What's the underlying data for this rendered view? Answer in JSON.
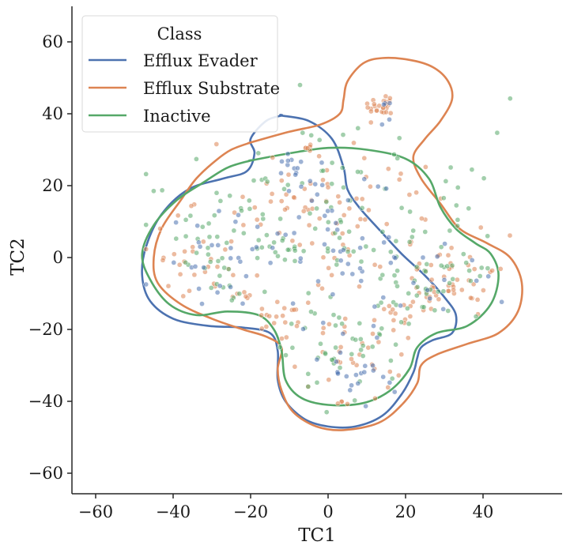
{
  "chart_data": {
    "type": "scatter",
    "xlabel": "TC1",
    "ylabel": "TC2",
    "xlim": [
      -65,
      60
    ],
    "ylim": [
      -66,
      70
    ],
    "x_ticks": [
      -60,
      -40,
      -20,
      0,
      20,
      40
    ],
    "y_ticks": [
      -60,
      -40,
      -20,
      0,
      20,
      40,
      60
    ],
    "x_tick_labels": [
      "−60",
      "−40",
      "−20",
      "0",
      "20",
      "40"
    ],
    "y_tick_labels": [
      "−60",
      "−40",
      "−20",
      "0",
      "20",
      "40",
      "60"
    ],
    "grid": false,
    "legend": {
      "title": "Class",
      "placement": "top-left",
      "entries": [
        {
          "label": "Efflux Evader",
          "color": "#4c72b0"
        },
        {
          "label": "Efflux Substrate",
          "color": "#dd8452"
        },
        {
          "label": "Inactive",
          "color": "#55a868"
        }
      ]
    },
    "series": [
      {
        "name": "Efflux Evader",
        "color": "#4c72b0",
        "contour": [
          [
            -12,
            39.5
          ],
          [
            -5,
            38
          ],
          [
            1,
            33
          ],
          [
            4,
            25
          ],
          [
            5,
            19
          ],
          [
            8,
            14
          ],
          [
            13,
            8
          ],
          [
            19,
            1
          ],
          [
            25,
            -5
          ],
          [
            30,
            -11
          ],
          [
            33,
            -16
          ],
          [
            32,
            -21
          ],
          [
            27,
            -23
          ],
          [
            24,
            -25
          ],
          [
            23,
            -28
          ],
          [
            22,
            -32
          ],
          [
            19,
            -38
          ],
          [
            14,
            -44
          ],
          [
            7,
            -47
          ],
          [
            0,
            -47
          ],
          [
            -6,
            -45
          ],
          [
            -11,
            -40
          ],
          [
            -13,
            -34
          ],
          [
            -13,
            -26
          ],
          [
            -15,
            -21
          ],
          [
            -22,
            -19.5
          ],
          [
            -31,
            -19
          ],
          [
            -40,
            -17
          ],
          [
            -46,
            -12
          ],
          [
            -48,
            -5
          ],
          [
            -47,
            3
          ],
          [
            -43,
            12
          ],
          [
            -36,
            19
          ],
          [
            -27,
            22
          ],
          [
            -21,
            24
          ],
          [
            -19,
            29
          ],
          [
            -20,
            33
          ],
          [
            -16,
            38
          ],
          [
            -12,
            39.5
          ]
        ],
        "clusters": [
          {
            "cx": -10,
            "cy": 25,
            "sx": 2,
            "sy": 2,
            "n": 12
          },
          {
            "cx": 0,
            "cy": 5,
            "sx": 18,
            "sy": 12,
            "n": 60
          },
          {
            "cx": 5,
            "cy": -30,
            "sx": 8,
            "sy": 6,
            "n": 22
          },
          {
            "cx": -25,
            "cy": -3,
            "sx": 10,
            "sy": 7,
            "n": 22
          },
          {
            "cx": 25,
            "cy": -12,
            "sx": 7,
            "sy": 5,
            "n": 10
          },
          {
            "cx": 14,
            "cy": 42,
            "sx": 1.5,
            "sy": 2,
            "n": 5
          }
        ]
      },
      {
        "name": "Efflux Substrate",
        "color": "#dd8452",
        "contour": [
          [
            -20,
            32
          ],
          [
            -10,
            35
          ],
          [
            -2,
            37
          ],
          [
            3,
            40
          ],
          [
            4,
            44
          ],
          [
            5,
            49
          ],
          [
            9,
            54
          ],
          [
            14,
            55.5
          ],
          [
            21,
            55
          ],
          [
            27,
            53
          ],
          [
            31,
            49
          ],
          [
            32,
            44
          ],
          [
            29,
            38
          ],
          [
            25,
            33
          ],
          [
            22,
            28
          ],
          [
            24,
            22
          ],
          [
            29,
            15
          ],
          [
            34,
            8
          ],
          [
            41,
            4
          ],
          [
            47,
            0
          ],
          [
            50,
            -7
          ],
          [
            49,
            -15
          ],
          [
            44,
            -21
          ],
          [
            36,
            -24
          ],
          [
            28,
            -27
          ],
          [
            24,
            -30
          ],
          [
            23,
            -35
          ],
          [
            19,
            -41
          ],
          [
            13,
            -46
          ],
          [
            4,
            -48
          ],
          [
            -3,
            -47
          ],
          [
            -9,
            -43
          ],
          [
            -12,
            -37
          ],
          [
            -13,
            -31
          ],
          [
            -12,
            -25
          ],
          [
            -16,
            -22
          ],
          [
            -22,
            -20
          ],
          [
            -30,
            -17
          ],
          [
            -38,
            -13
          ],
          [
            -44,
            -7
          ],
          [
            -45,
            0
          ],
          [
            -43,
            8
          ],
          [
            -38,
            16
          ],
          [
            -34,
            22
          ],
          [
            -29,
            27
          ],
          [
            -25,
            30
          ],
          [
            -20,
            32
          ]
        ],
        "clusters": [
          {
            "cx": 14,
            "cy": 42,
            "sx": 1.8,
            "sy": 2,
            "n": 25
          },
          {
            "cx": -6,
            "cy": 30,
            "sx": 1.2,
            "sy": 1.2,
            "n": 6
          },
          {
            "cx": 0,
            "cy": 8,
            "sx": 18,
            "sy": 12,
            "n": 100
          },
          {
            "cx": 32,
            "cy": -8,
            "sx": 6,
            "sy": 4,
            "n": 45
          },
          {
            "cx": -12,
            "cy": -17,
            "sx": 3,
            "sy": 3,
            "n": 18
          },
          {
            "cx": 5,
            "cy": -28,
            "sx": 8,
            "sy": 6,
            "n": 30
          },
          {
            "cx": -33,
            "cy": -5,
            "sx": 6,
            "sy": 5,
            "n": 25
          },
          {
            "cx": 18,
            "cy": -15,
            "sx": 5,
            "sy": 4,
            "n": 15
          },
          {
            "cx": 4,
            "cy": -40,
            "sx": 1,
            "sy": 0.8,
            "n": 4
          }
        ]
      },
      {
        "name": "Inactive",
        "color": "#55a868",
        "contour": [
          [
            -20,
            27
          ],
          [
            -10,
            29
          ],
          [
            0,
            30.5
          ],
          [
            10,
            30
          ],
          [
            20,
            27.5
          ],
          [
            26,
            22
          ],
          [
            29,
            14
          ],
          [
            33,
            8
          ],
          [
            38,
            4
          ],
          [
            42,
            1
          ],
          [
            44,
            -5
          ],
          [
            42,
            -13
          ],
          [
            36,
            -19
          ],
          [
            28,
            -21
          ],
          [
            23,
            -25
          ],
          [
            21,
            -31
          ],
          [
            16,
            -37
          ],
          [
            9,
            -40.5
          ],
          [
            0,
            -41
          ],
          [
            -7,
            -39
          ],
          [
            -11,
            -34
          ],
          [
            -12,
            -26
          ],
          [
            -14,
            -20
          ],
          [
            -18,
            -16
          ],
          [
            -26,
            -15
          ],
          [
            -34,
            -16
          ],
          [
            -41,
            -13
          ],
          [
            -46,
            -6
          ],
          [
            -48,
            1
          ],
          [
            -45,
            9
          ],
          [
            -39,
            16
          ],
          [
            -32,
            21
          ],
          [
            -26,
            25
          ],
          [
            -20,
            27
          ]
        ],
        "clusters": [
          {
            "cx": 0,
            "cy": 8,
            "sx": 20,
            "sy": 13,
            "n": 140
          },
          {
            "cx": 5,
            "cy": -28,
            "sx": 8,
            "sy": 6,
            "n": 35
          },
          {
            "cx": 28,
            "cy": -7,
            "sx": 6,
            "sy": 4,
            "n": 20
          },
          {
            "cx": -30,
            "cy": 2,
            "sx": 7,
            "sy": 6,
            "n": 25
          },
          {
            "cx": 18,
            "cy": -15,
            "sx": 5,
            "sy": 4,
            "n": 10
          }
        ]
      }
    ]
  }
}
